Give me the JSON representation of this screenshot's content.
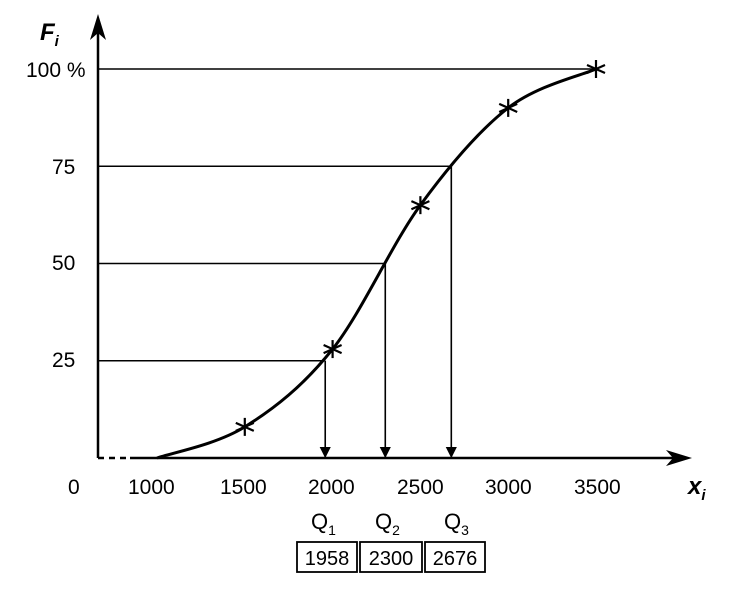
{
  "chart_data": {
    "type": "line",
    "xlabel": "x",
    "xlabel_sub": "i",
    "ylabel": "F",
    "ylabel_sub": "i",
    "xlim": [
      1000,
      3500
    ],
    "ylim": [
      0,
      100
    ],
    "origin_label": "0",
    "x_ticks": [
      "1000",
      "1500",
      "2000",
      "2500",
      "3000",
      "3500"
    ],
    "x_tick_values": [
      1000,
      1500,
      2000,
      2500,
      3000,
      3500
    ],
    "y_ticks": [
      "25",
      "50",
      "75",
      "100 %"
    ],
    "y_tick_values": [
      25,
      50,
      75,
      100
    ],
    "series": [
      {
        "x": [
          1000,
          1500,
          2000,
          2500,
          3000,
          3500
        ],
        "y": [
          0,
          8,
          28,
          65,
          90,
          100
        ],
        "markers": [
          false,
          true,
          true,
          true,
          true,
          true
        ]
      }
    ],
    "quartiles": [
      {
        "label": "Q",
        "sub": "1",
        "value": "1958",
        "x": 1958,
        "y": 25
      },
      {
        "label": "Q",
        "sub": "2",
        "value": "2300",
        "x": 2300,
        "y": 50
      },
      {
        "label": "Q",
        "sub": "3",
        "value": "2676",
        "x": 2676,
        "y": 75
      }
    ],
    "reference_line_y": 100,
    "grid": false
  }
}
